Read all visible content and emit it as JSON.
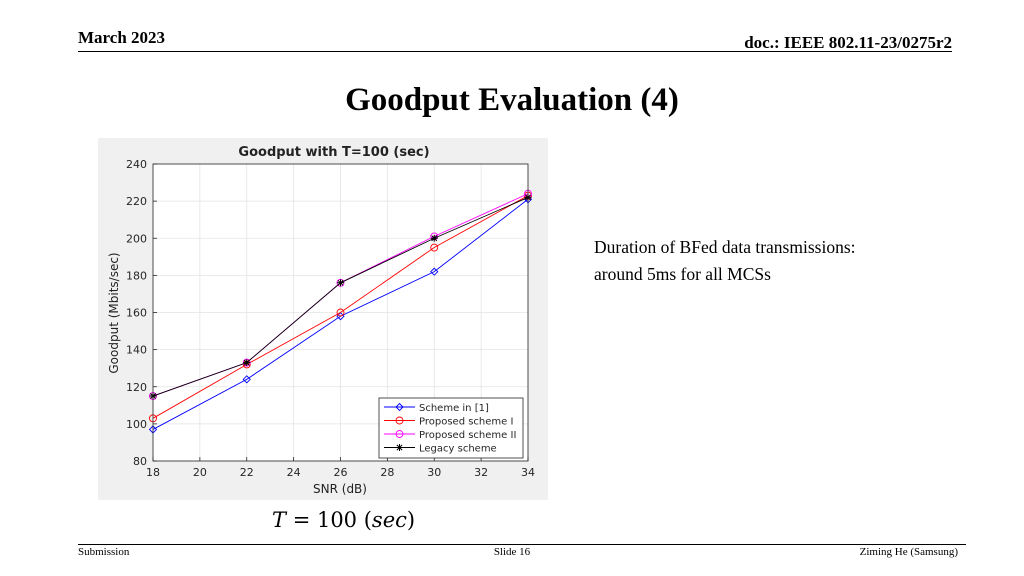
{
  "header": {
    "date": "March 2023",
    "doc": "doc.: IEEE 802.11-23/0275r2"
  },
  "slide": {
    "title": "Goodput Evaluation (4)",
    "note_line1": "Duration of BFed data transmissions:",
    "note_line2": "around 5ms for all MCSs",
    "equation": {
      "var": "T",
      "rest": " = 100 (",
      "unit": "sec",
      "close": ")"
    }
  },
  "footer": {
    "left": "Submission",
    "center": "Slide 16",
    "right": "Ziming He (Samsung)"
  },
  "chart_data": {
    "type": "line",
    "title": "Goodput with T=100 (sec)",
    "xlabel": "SNR (dB)",
    "ylabel": "Goodput (Mbits/sec)",
    "xlim": [
      18,
      34
    ],
    "ylim": [
      80,
      240
    ],
    "xticks": [
      18,
      20,
      22,
      24,
      26,
      28,
      30,
      32,
      34
    ],
    "yticks": [
      80,
      100,
      120,
      140,
      160,
      180,
      200,
      220,
      240
    ],
    "x": [
      18,
      22,
      26,
      30,
      34
    ],
    "grid": true,
    "legend_position": "bottom-right",
    "series": [
      {
        "name": "Scheme in [1]",
        "color": "#0000ff",
        "marker": "diamond",
        "values": [
          97,
          124,
          158,
          182,
          221
        ]
      },
      {
        "name": "Proposed scheme I",
        "color": "#ff0000",
        "marker": "circle",
        "values": [
          103,
          132,
          160,
          195,
          223
        ]
      },
      {
        "name": "Proposed scheme II",
        "color": "#ff00ff",
        "marker": "circle",
        "values": [
          115,
          133,
          176,
          201,
          224
        ]
      },
      {
        "name": "Legacy scheme",
        "color": "#000000",
        "marker": "star",
        "values": [
          115,
          133,
          176,
          200,
          222
        ]
      }
    ]
  }
}
